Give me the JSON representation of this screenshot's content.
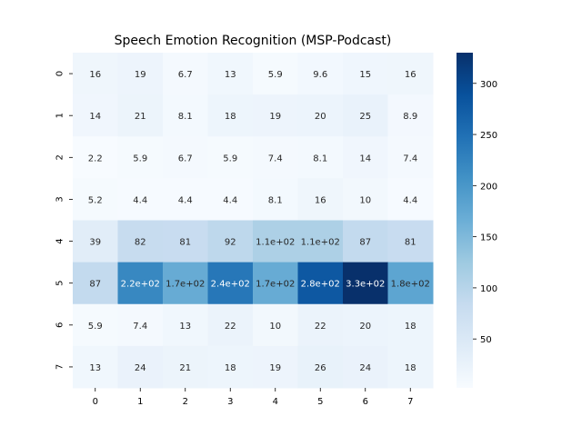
{
  "chart_data": {
    "type": "heatmap",
    "title": "Speech Emotion Recognition (MSP-Podcast)",
    "x_categories": [
      "0",
      "1",
      "2",
      "3",
      "4",
      "5",
      "6",
      "7"
    ],
    "y_categories": [
      "0",
      "1",
      "2",
      "3",
      "4",
      "5",
      "6",
      "7"
    ],
    "values": [
      [
        16,
        19,
        6.7,
        13,
        5.9,
        9.6,
        15,
        16
      ],
      [
        14,
        21,
        8.1,
        18,
        19,
        20,
        25,
        8.9
      ],
      [
        2.2,
        5.9,
        6.7,
        5.9,
        7.4,
        8.1,
        14,
        7.4
      ],
      [
        5.2,
        4.4,
        4.4,
        4.4,
        8.1,
        16,
        10,
        4.4
      ],
      [
        39,
        82,
        81,
        92,
        110,
        110,
        87,
        81
      ],
      [
        87,
        220,
        170,
        240,
        170,
        280,
        330,
        180
      ],
      [
        5.9,
        7.4,
        13,
        22,
        10,
        22,
        20,
        18
      ],
      [
        13,
        24,
        21,
        18,
        19,
        26,
        24,
        18
      ]
    ],
    "cell_labels": [
      [
        "16",
        "19",
        "6.7",
        "13",
        "5.9",
        "9.6",
        "15",
        "16"
      ],
      [
        "14",
        "21",
        "8.1",
        "18",
        "19",
        "20",
        "25",
        "8.9"
      ],
      [
        "2.2",
        "5.9",
        "6.7",
        "5.9",
        "7.4",
        "8.1",
        "14",
        "7.4"
      ],
      [
        "5.2",
        "4.4",
        "4.4",
        "4.4",
        "8.1",
        "16",
        "10",
        "4.4"
      ],
      [
        "39",
        "82",
        "81",
        "92",
        "1.1e+02",
        "1.1e+02",
        "87",
        "81"
      ],
      [
        "87",
        "2.2e+02",
        "1.7e+02",
        "2.4e+02",
        "1.7e+02",
        "2.8e+02",
        "3.3e+02",
        "1.8e+02"
      ],
      [
        "5.9",
        "7.4",
        "13",
        "22",
        "10",
        "22",
        "20",
        "18"
      ],
      [
        "13",
        "24",
        "21",
        "18",
        "19",
        "26",
        "24",
        "18"
      ]
    ],
    "colormap": "Blues",
    "color_range": [
      2.2,
      330
    ],
    "colorbar_ticks": [
      50,
      100,
      150,
      200,
      250,
      300
    ],
    "colorbar_tick_labels": [
      "50",
      "100",
      "150",
      "200",
      "250",
      "300"
    ],
    "xlabel": "",
    "ylabel": ""
  }
}
